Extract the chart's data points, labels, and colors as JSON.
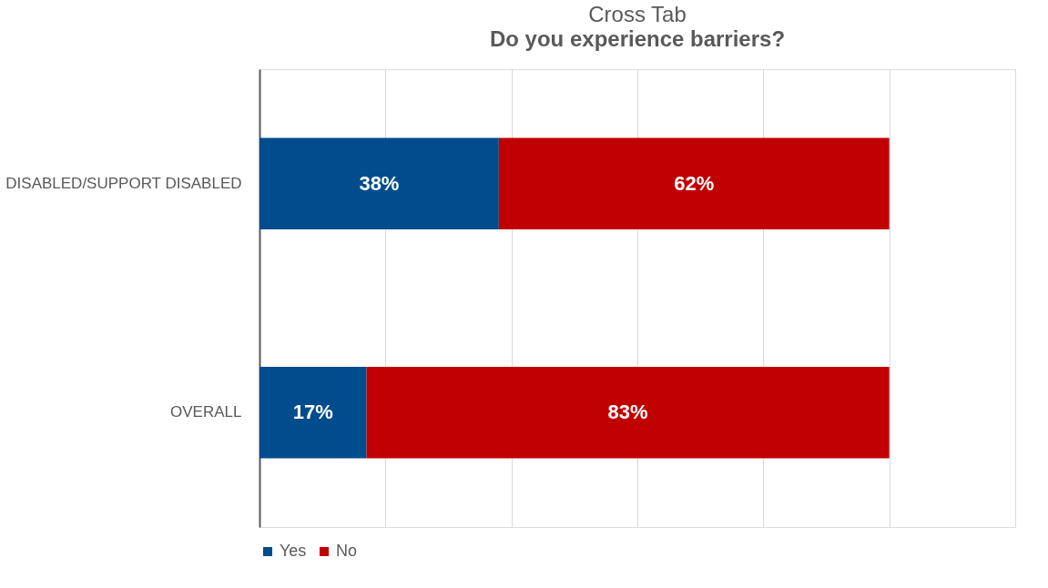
{
  "chart_data": {
    "type": "bar",
    "orientation": "horizontal",
    "stacked": true,
    "title": "Cross Tab",
    "subtitle": "Do you experience barriers?",
    "categories": [
      "DISABLED/SUPPORT DISABLED",
      "OVERALL"
    ],
    "series": [
      {
        "name": "Yes",
        "color": "#004c8c",
        "values": [
          38,
          17
        ],
        "value_labels": [
          "38%",
          "17%"
        ]
      },
      {
        "name": "No",
        "color": "#c00000",
        "values": [
          62,
          83
        ],
        "value_labels": [
          "62%",
          "83%"
        ]
      }
    ],
    "tick_labels": "y",
    "grid": "x",
    "legend": "bottom"
  }
}
